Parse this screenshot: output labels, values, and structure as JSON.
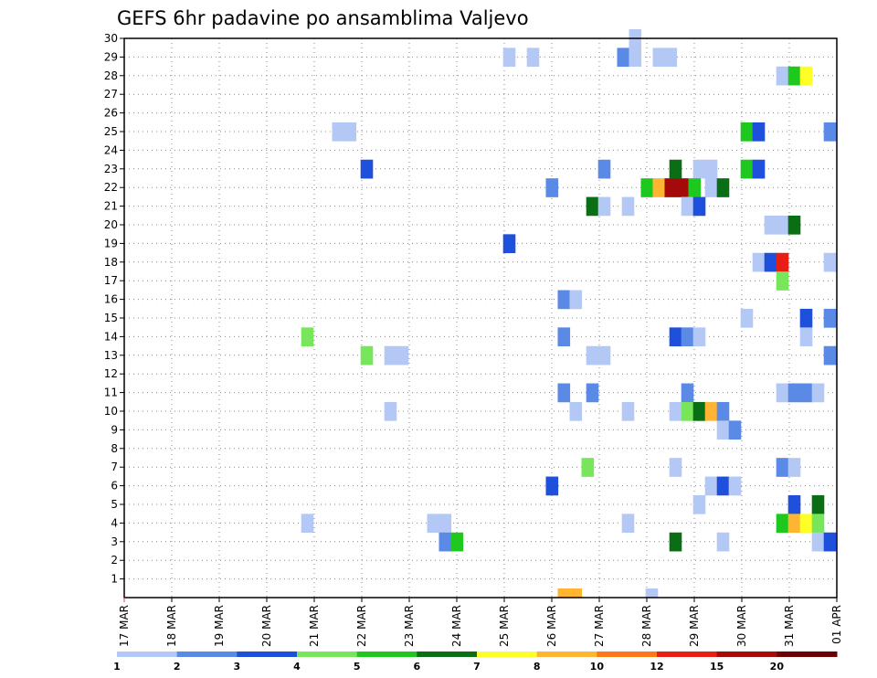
{
  "chart_data": {
    "type": "heatmap",
    "title": "GEFS 6hr padavine po ansamblima Valjevo",
    "x_tick_labels": [
      "17 MAR",
      "18 MAR",
      "19 MAR",
      "20 MAR",
      "21 MAR",
      "22 MAR",
      "23 MAR",
      "24 MAR",
      "25 MAR",
      "26 MAR",
      "27 MAR",
      "28 MAR",
      "29 MAR",
      "30 MAR",
      "31 MAR",
      "01 APR"
    ],
    "y_tick_labels": [
      "1",
      "2",
      "3",
      "4",
      "5",
      "6",
      "7",
      "8",
      "9",
      "10",
      "11",
      "12",
      "13",
      "14",
      "15",
      "16",
      "17",
      "18",
      "19",
      "20",
      "21",
      "22",
      "23",
      "24",
      "25",
      "26",
      "27",
      "28",
      "29",
      "30"
    ],
    "xlim_days": [
      17,
      32
    ],
    "ylim": [
      0,
      30
    ],
    "grid": true,
    "colorbar": {
      "labels": [
        "1",
        "2",
        "3",
        "4",
        "5",
        "6",
        "7",
        "8",
        "10",
        "12",
        "15",
        "20"
      ],
      "colors": [
        "#b4c8f5",
        "#5a8ae6",
        "#1e50dc",
        "#78e65a",
        "#1ec81e",
        "#0a6e14",
        "#ffff28",
        "#ffb432",
        "#ff7814",
        "#e61e14",
        "#a50a0a",
        "#6e0005"
      ]
    },
    "cells": [
      {
        "day": 25.1,
        "member": 29,
        "level": 1
      },
      {
        "day": 25.6,
        "member": 29,
        "level": 1
      },
      {
        "day": 27.5,
        "member": 29,
        "level": 2
      },
      {
        "day": 27.75,
        "member": 29,
        "level": 1
      },
      {
        "day": 28.25,
        "member": 29,
        "level": 1
      },
      {
        "day": 28.5,
        "member": 29,
        "level": 1
      },
      {
        "day": 27.75,
        "member": 30,
        "level": 1
      },
      {
        "day": 30.85,
        "member": 28,
        "level": 1
      },
      {
        "day": 31.1,
        "member": 28,
        "level": 5
      },
      {
        "day": 31.35,
        "member": 28,
        "level": 7
      },
      {
        "day": 21.5,
        "member": 25,
        "level": 1
      },
      {
        "day": 21.75,
        "member": 25,
        "level": 1
      },
      {
        "day": 30.1,
        "member": 25,
        "level": 5
      },
      {
        "day": 30.35,
        "member": 25,
        "level": 3
      },
      {
        "day": 31.85,
        "member": 25,
        "level": 2
      },
      {
        "day": 22.1,
        "member": 23,
        "level": 3
      },
      {
        "day": 27.1,
        "member": 23,
        "level": 2
      },
      {
        "day": 28.6,
        "member": 23,
        "level": 6
      },
      {
        "day": 29.1,
        "member": 23,
        "level": 1
      },
      {
        "day": 29.35,
        "member": 23,
        "level": 1
      },
      {
        "day": 30.1,
        "member": 23,
        "level": 5
      },
      {
        "day": 30.35,
        "member": 23,
        "level": 3
      },
      {
        "day": 26.0,
        "member": 22,
        "level": 2
      },
      {
        "day": 28.0,
        "member": 22,
        "level": 5
      },
      {
        "day": 28.25,
        "member": 22,
        "level": 8
      },
      {
        "day": 28.5,
        "member": 22,
        "level": 11
      },
      {
        "day": 28.75,
        "member": 22,
        "level": 11
      },
      {
        "day": 29.0,
        "member": 22,
        "level": 5
      },
      {
        "day": 29.35,
        "member": 22,
        "level": 1
      },
      {
        "day": 29.6,
        "member": 22,
        "level": 6
      },
      {
        "day": 26.85,
        "member": 21,
        "level": 6
      },
      {
        "day": 27.1,
        "member": 21,
        "level": 1
      },
      {
        "day": 27.6,
        "member": 21,
        "level": 1
      },
      {
        "day": 28.85,
        "member": 21,
        "level": 1
      },
      {
        "day": 29.1,
        "member": 21,
        "level": 3
      },
      {
        "day": 30.6,
        "member": 20,
        "level": 1
      },
      {
        "day": 30.85,
        "member": 20,
        "level": 1
      },
      {
        "day": 31.1,
        "member": 20,
        "level": 6
      },
      {
        "day": 25.1,
        "member": 19,
        "level": 3
      },
      {
        "day": 30.35,
        "member": 18,
        "level": 1
      },
      {
        "day": 30.6,
        "member": 18,
        "level": 3
      },
      {
        "day": 30.85,
        "member": 18,
        "level": 10
      },
      {
        "day": 31.85,
        "member": 18,
        "level": 1
      },
      {
        "day": 30.85,
        "member": 17,
        "level": 4
      },
      {
        "day": 26.25,
        "member": 16,
        "level": 2
      },
      {
        "day": 26.5,
        "member": 16,
        "level": 1
      },
      {
        "day": 30.1,
        "member": 15,
        "level": 1
      },
      {
        "day": 31.35,
        "member": 15,
        "level": 3
      },
      {
        "day": 31.85,
        "member": 15,
        "level": 2
      },
      {
        "day": 20.85,
        "member": 14,
        "level": 4
      },
      {
        "day": 26.25,
        "member": 14,
        "level": 2
      },
      {
        "day": 28.6,
        "member": 14,
        "level": 3
      },
      {
        "day": 28.85,
        "member": 14,
        "level": 2
      },
      {
        "day": 29.1,
        "member": 14,
        "level": 1
      },
      {
        "day": 31.35,
        "member": 14,
        "level": 1
      },
      {
        "day": 22.1,
        "member": 13,
        "level": 4
      },
      {
        "day": 22.6,
        "member": 13,
        "level": 1
      },
      {
        "day": 22.85,
        "member": 13,
        "level": 1
      },
      {
        "day": 26.85,
        "member": 13,
        "level": 1
      },
      {
        "day": 27.1,
        "member": 13,
        "level": 1
      },
      {
        "day": 31.85,
        "member": 13,
        "level": 2
      },
      {
        "day": 26.25,
        "member": 11,
        "level": 2
      },
      {
        "day": 26.85,
        "member": 11,
        "level": 2
      },
      {
        "day": 28.85,
        "member": 11,
        "level": 2
      },
      {
        "day": 30.85,
        "member": 11,
        "level": 1
      },
      {
        "day": 31.1,
        "member": 11,
        "level": 2
      },
      {
        "day": 31.35,
        "member": 11,
        "level": 2
      },
      {
        "day": 31.6,
        "member": 11,
        "level": 1
      },
      {
        "day": 22.6,
        "member": 10,
        "level": 1
      },
      {
        "day": 26.5,
        "member": 10,
        "level": 1
      },
      {
        "day": 27.6,
        "member": 10,
        "level": 1
      },
      {
        "day": 28.6,
        "member": 10,
        "level": 1
      },
      {
        "day": 28.85,
        "member": 10,
        "level": 4
      },
      {
        "day": 29.1,
        "member": 10,
        "level": 6
      },
      {
        "day": 29.35,
        "member": 10,
        "level": 8
      },
      {
        "day": 29.6,
        "member": 10,
        "level": 2
      },
      {
        "day": 29.6,
        "member": 9,
        "level": 1
      },
      {
        "day": 29.85,
        "member": 9,
        "level": 2
      },
      {
        "day": 26.75,
        "member": 7,
        "level": 4
      },
      {
        "day": 28.6,
        "member": 7,
        "level": 1
      },
      {
        "day": 30.85,
        "member": 7,
        "level": 2
      },
      {
        "day": 31.1,
        "member": 7,
        "level": 1
      },
      {
        "day": 26.0,
        "member": 6,
        "level": 3
      },
      {
        "day": 29.35,
        "member": 6,
        "level": 1
      },
      {
        "day": 29.6,
        "member": 6,
        "level": 3
      },
      {
        "day": 29.85,
        "member": 6,
        "level": 1
      },
      {
        "day": 29.1,
        "member": 5,
        "level": 1
      },
      {
        "day": 31.1,
        "member": 5,
        "level": 3
      },
      {
        "day": 31.6,
        "member": 5,
        "level": 6
      },
      {
        "day": 20.85,
        "member": 4,
        "level": 1
      },
      {
        "day": 23.5,
        "member": 4,
        "level": 1
      },
      {
        "day": 23.75,
        "member": 4,
        "level": 1
      },
      {
        "day": 27.6,
        "member": 4,
        "level": 1
      },
      {
        "day": 30.85,
        "member": 4,
        "level": 5
      },
      {
        "day": 31.1,
        "member": 4,
        "level": 8
      },
      {
        "day": 31.35,
        "member": 4,
        "level": 7
      },
      {
        "day": 31.6,
        "member": 4,
        "level": 4
      },
      {
        "day": 23.75,
        "member": 3,
        "level": 2
      },
      {
        "day": 24.0,
        "member": 3,
        "level": 5
      },
      {
        "day": 28.6,
        "member": 3,
        "level": 6
      },
      {
        "day": 29.6,
        "member": 3,
        "level": 1
      },
      {
        "day": 31.6,
        "member": 3,
        "level": 1
      },
      {
        "day": 31.85,
        "member": 3,
        "level": 3
      }
    ],
    "bottom_strip": [
      {
        "day": 26.25,
        "level": 8
      },
      {
        "day": 26.5,
        "level": 8
      },
      {
        "day": 28.1,
        "level": 1
      }
    ]
  }
}
